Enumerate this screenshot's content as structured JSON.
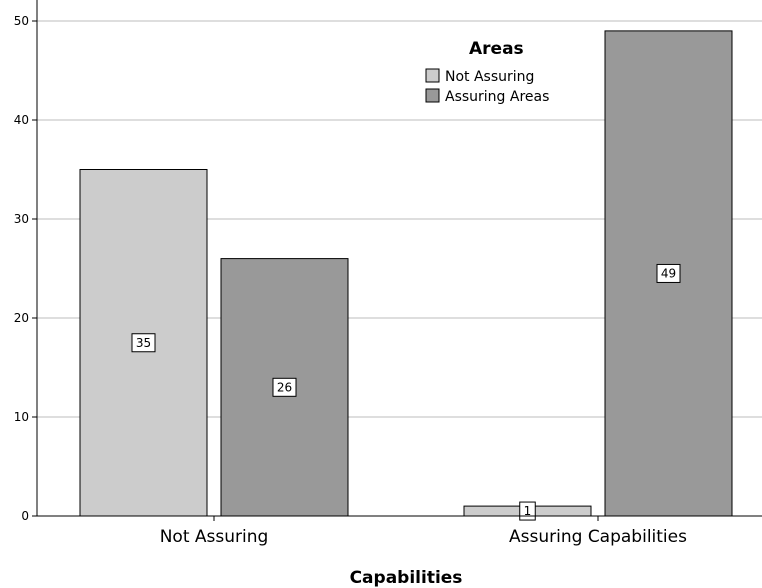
{
  "chart_data": {
    "type": "bar",
    "categories": [
      "Not Assuring",
      "Assuring Capabilities"
    ],
    "series": [
      {
        "name": "Not Assuring",
        "values": [
          35,
          1
        ],
        "color": "#cccccc"
      },
      {
        "name": "Assuring Areas",
        "values": [
          26,
          49
        ],
        "color": "#999999"
      }
    ],
    "xlabel": "Capabilities",
    "ylabel": "",
    "ylim": [
      0,
      52
    ],
    "yticks": [
      0,
      10,
      20,
      30,
      40,
      50
    ],
    "legend_title": "Areas",
    "legend_position": "top-right",
    "grid": true,
    "data_labels": true
  }
}
